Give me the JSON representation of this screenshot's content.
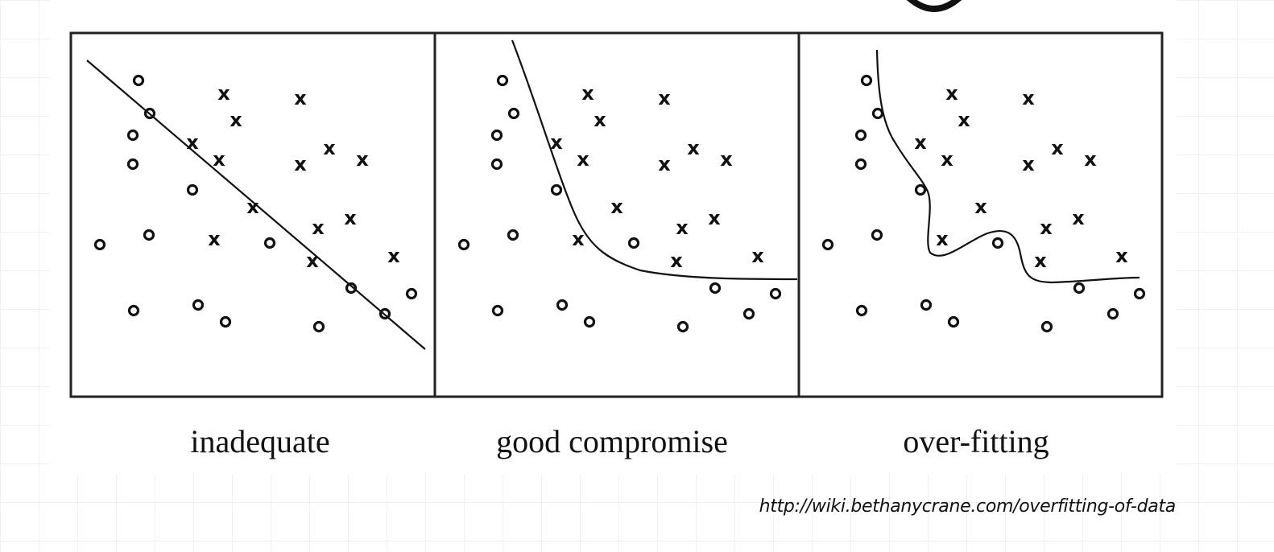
{
  "figure": {
    "panels": [
      {
        "id": "inadequate",
        "caption": "inadequate",
        "boundary": "line",
        "points": [
          [
            "o",
            172,
            100
          ],
          [
            "o",
            186,
            141
          ],
          [
            "o",
            165,
            168
          ],
          [
            "o",
            165,
            204
          ],
          [
            "o",
            239,
            236
          ],
          [
            "o",
            124,
            304
          ],
          [
            "o",
            185,
            292
          ],
          [
            "o",
            335,
            302
          ],
          [
            "o",
            166,
            386
          ],
          [
            "o",
            246,
            379
          ],
          [
            "o",
            280,
            400
          ],
          [
            "o",
            396,
            406
          ],
          [
            "o",
            436,
            358
          ],
          [
            "o",
            478,
            390
          ],
          [
            "o",
            511,
            365
          ],
          [
            "x",
            278,
            116
          ],
          [
            "x",
            373,
            122
          ],
          [
            "x",
            293,
            149
          ],
          [
            "x",
            239,
            177
          ],
          [
            "x",
            272,
            198
          ],
          [
            "x",
            373,
            204
          ],
          [
            "x",
            409,
            184
          ],
          [
            "x",
            450,
            198
          ],
          [
            "x",
            314,
            257
          ],
          [
            "x",
            395,
            283
          ],
          [
            "x",
            435,
            271
          ],
          [
            "x",
            266,
            297
          ],
          [
            "x",
            388,
            324
          ],
          [
            "x",
            489,
            318
          ]
        ]
      },
      {
        "id": "good-compromise",
        "caption": "good compromise",
        "boundary": "smooth-curve",
        "points": [
          [
            "o",
            624,
            100
          ],
          [
            "o",
            638,
            141
          ],
          [
            "o",
            617,
            168
          ],
          [
            "o",
            617,
            204
          ],
          [
            "o",
            691,
            236
          ],
          [
            "o",
            576,
            304
          ],
          [
            "o",
            637,
            292
          ],
          [
            "o",
            787,
            302
          ],
          [
            "o",
            618,
            386
          ],
          [
            "o",
            698,
            379
          ],
          [
            "o",
            732,
            400
          ],
          [
            "o",
            848,
            406
          ],
          [
            "o",
            888,
            358
          ],
          [
            "o",
            930,
            390
          ],
          [
            "o",
            963,
            365
          ],
          [
            "x",
            730,
            116
          ],
          [
            "x",
            825,
            122
          ],
          [
            "x",
            745,
            149
          ],
          [
            "x",
            691,
            177
          ],
          [
            "x",
            724,
            198
          ],
          [
            "x",
            825,
            204
          ],
          [
            "x",
            861,
            184
          ],
          [
            "x",
            902,
            198
          ],
          [
            "x",
            766,
            257
          ],
          [
            "x",
            847,
            283
          ],
          [
            "x",
            887,
            271
          ],
          [
            "x",
            718,
            297
          ],
          [
            "x",
            840,
            324
          ],
          [
            "x",
            941,
            318
          ]
        ]
      },
      {
        "id": "over-fitting",
        "caption": "over-fitting",
        "boundary": "wiggly-curve",
        "points": [
          [
            "o",
            1076,
            100
          ],
          [
            "o",
            1090,
            141
          ],
          [
            "o",
            1069,
            168
          ],
          [
            "o",
            1069,
            204
          ],
          [
            "o",
            1143,
            236
          ],
          [
            "o",
            1028,
            304
          ],
          [
            "o",
            1089,
            292
          ],
          [
            "o",
            1239,
            302
          ],
          [
            "o",
            1070,
            386
          ],
          [
            "o",
            1150,
            379
          ],
          [
            "o",
            1184,
            400
          ],
          [
            "o",
            1300,
            406
          ],
          [
            "o",
            1340,
            358
          ],
          [
            "o",
            1382,
            390
          ],
          [
            "o",
            1415,
            365
          ],
          [
            "x",
            1182,
            116
          ],
          [
            "x",
            1277,
            122
          ],
          [
            "x",
            1197,
            149
          ],
          [
            "x",
            1143,
            177
          ],
          [
            "x",
            1176,
            198
          ],
          [
            "x",
            1277,
            204
          ],
          [
            "x",
            1313,
            184
          ],
          [
            "x",
            1354,
            198
          ],
          [
            "x",
            1218,
            257
          ],
          [
            "x",
            1299,
            283
          ],
          [
            "x",
            1339,
            271
          ],
          [
            "x",
            1170,
            297
          ],
          [
            "x",
            1292,
            324
          ],
          [
            "x",
            1393,
            318
          ]
        ]
      }
    ],
    "source_url": "http://wiki.bethanycrane.com/overfitting-of-data"
  }
}
